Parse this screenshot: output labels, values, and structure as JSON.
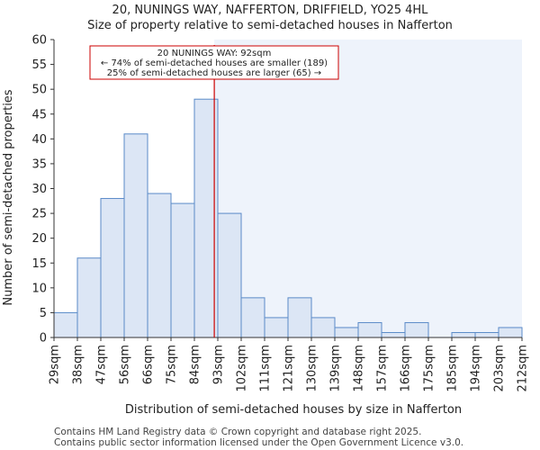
{
  "chart_data": {
    "type": "bar",
    "title": "20, NUNINGS WAY, NAFFERTON, DRIFFIELD, YO25 4HL",
    "subtitle": "Size of property relative to semi-detached houses in Nafferton",
    "xlabel": "Distribution of semi-detached houses by size in Nafferton",
    "ylabel": "Number of semi-detached properties",
    "ylim": [
      0,
      60
    ],
    "yticks": [
      0,
      5,
      10,
      15,
      20,
      25,
      30,
      35,
      40,
      45,
      50,
      55,
      60
    ],
    "bin_edges": [
      "29sqm",
      "38sqm",
      "47sqm",
      "56sqm",
      "66sqm",
      "75sqm",
      "84sqm",
      "93sqm",
      "102sqm",
      "111sqm",
      "121sqm",
      "130sqm",
      "139sqm",
      "148sqm",
      "157sqm",
      "166sqm",
      "175sqm",
      "185sqm",
      "194sqm",
      "203sqm",
      "212sqm"
    ],
    "values": [
      5,
      16,
      28,
      41,
      29,
      27,
      48,
      25,
      8,
      4,
      8,
      4,
      2,
      3,
      1,
      3,
      0,
      1,
      1,
      2
    ],
    "marker_bin_position": 6.85,
    "bar_color": "#dce6f5",
    "bar_edge_color": "#5a8ac8",
    "highlight_color": "#eef3fb",
    "marker_color": "#cc0000",
    "annotation": {
      "line1": "20 NUNINGS WAY: 92sqm",
      "line2": "← 74% of semi-detached houses are smaller (189)",
      "line3": "25% of semi-detached houses are larger (65) →"
    }
  },
  "footer": {
    "line1": "Contains HM Land Registry data © Crown copyright and database right 2025.",
    "line2": "Contains public sector information licensed under the Open Government Licence v3.0."
  }
}
